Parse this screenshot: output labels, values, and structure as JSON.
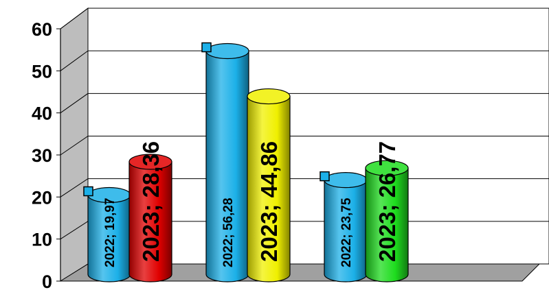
{
  "chart_data": {
    "type": "bar",
    "style": "3d-cylinder",
    "ylim": [
      0,
      60
    ],
    "yticks": [
      "0",
      "10",
      "20",
      "30",
      "40",
      "50",
      "60"
    ],
    "grid": true,
    "legend": "none",
    "groups": [
      {
        "bars": [
          {
            "label": "2022; 19,97",
            "value": 19.97,
            "color": "#1cb0e8",
            "big": false,
            "marker": true
          },
          {
            "label": "2023; 28,36",
            "value": 28.36,
            "color": "#e00000",
            "big": true,
            "marker": false
          }
        ]
      },
      {
        "bars": [
          {
            "label": "2022; 56,28",
            "value": 56.28,
            "color": "#1cb0e8",
            "big": false,
            "marker": true
          },
          {
            "label": "2023; 44,86",
            "value": 44.86,
            "color": "#f0f000",
            "big": true,
            "marker": false
          }
        ]
      },
      {
        "bars": [
          {
            "label": "2022; 23,75",
            "value": 23.75,
            "color": "#1cb0e8",
            "big": false,
            "marker": true
          },
          {
            "label": "2023; 26,77",
            "value": 26.77,
            "color": "#1edc1e",
            "big": true,
            "marker": false
          }
        ]
      }
    ],
    "colors": {
      "wall": "#ffffff",
      "side_wall": "#bdbdbd",
      "floor": "#a0a0a0",
      "marker": "#1cb0e8"
    }
  }
}
